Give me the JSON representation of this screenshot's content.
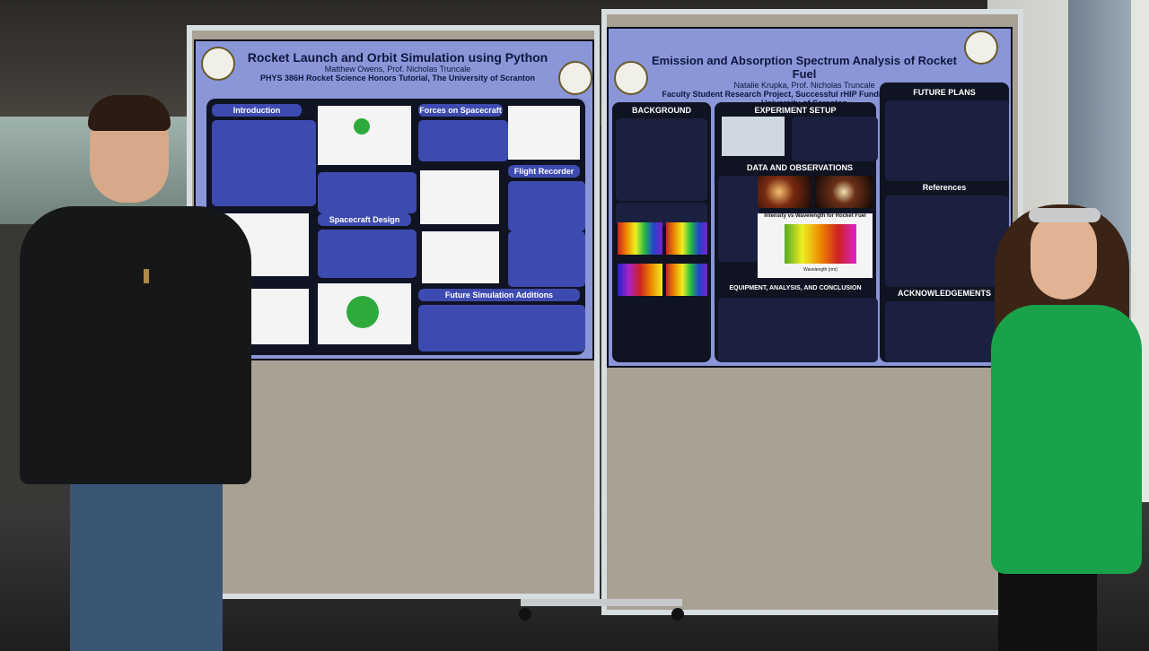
{
  "scene": {
    "left_poster": {
      "title": "Rocket Launch and Orbit Simulation using Python",
      "authors": "Matthew Owens, Prof. Nicholas Truncale",
      "affiliation": "PHYS 386H Rocket Science Honors Tutorial, The University of Scranton",
      "sections": [
        "Introduction",
        "Forces on Spacecraft",
        "Flight Recorder",
        "Spacecraft Design",
        "Future Simulation Additions"
      ]
    },
    "right_poster": {
      "title": "Emission and Absorption Spectrum Analysis of Rocket Fuel",
      "authors": "Natalie Krupka, Prof. Nicholas Truncale",
      "affiliation": "Faculty Student Research Project, Successful rHIP Funding Proposal, The University of Scranton",
      "sections": [
        "BACKGROUND",
        "EXPERIMENT SETUP",
        "FUTURE PLANS",
        "DATA AND OBSERVATIONS",
        "References",
        "EQUIPMENT, ANALYSIS, AND CONCLUSION",
        "ACKNOWLEDGEMENTS"
      ],
      "chart_title": "Intensity vs Wavelength for Rocket Fuel",
      "chart_xlabel": "Wavelength (nm)"
    }
  }
}
